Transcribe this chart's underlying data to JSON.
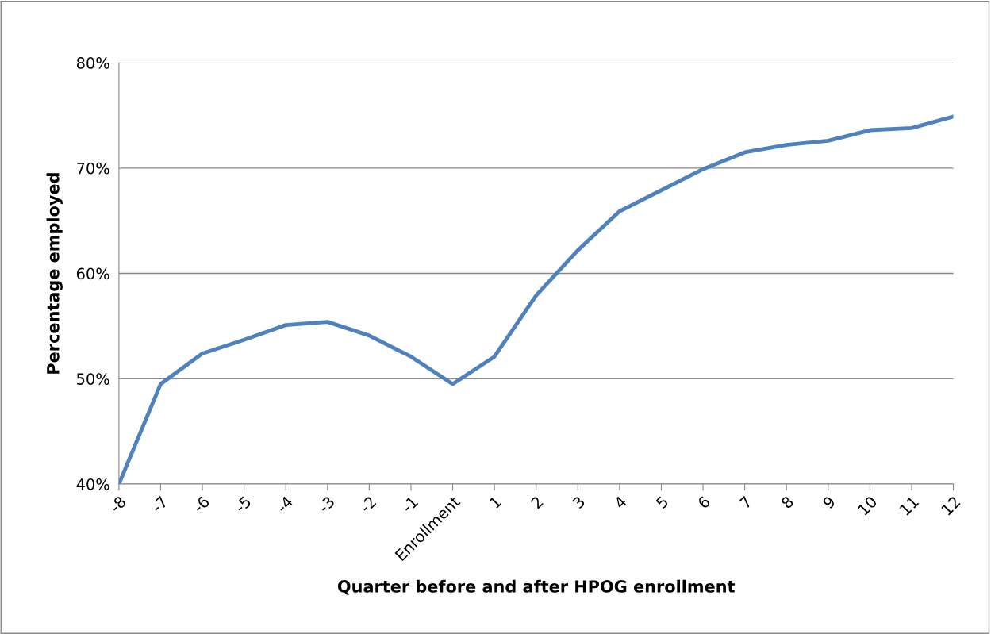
{
  "chart_data": {
    "type": "line",
    "xlabel": "Quarter before and after HPOG enrollment",
    "ylabel": "Percentage employed",
    "categories": [
      "-8",
      "-7",
      "-6",
      "-5",
      "-4",
      "-3",
      "-2",
      "-1",
      "Enrollment",
      "1",
      "2",
      "3",
      "4",
      "5",
      "6",
      "7",
      "8",
      "9",
      "10",
      "11",
      "12"
    ],
    "series": [
      {
        "color": "#4f81bd",
        "values": [
          40.0,
          49.5,
          52.4,
          53.7,
          55.1,
          55.4,
          54.1,
          52.1,
          49.5,
          52.1,
          57.9,
          62.2,
          65.9,
          67.9,
          69.9,
          71.5,
          72.2,
          72.6,
          73.6,
          73.8,
          74.9
        ]
      }
    ],
    "ylim": [
      40,
      80
    ],
    "yticks": [
      {
        "value": 40,
        "label": "40%"
      },
      {
        "value": 50,
        "label": "50%"
      },
      {
        "value": 60,
        "label": "60%"
      },
      {
        "value": 70,
        "label": "70%"
      },
      {
        "value": 80,
        "label": "80%"
      }
    ],
    "grid": "y",
    "marker": "none",
    "line_style": "solid"
  }
}
